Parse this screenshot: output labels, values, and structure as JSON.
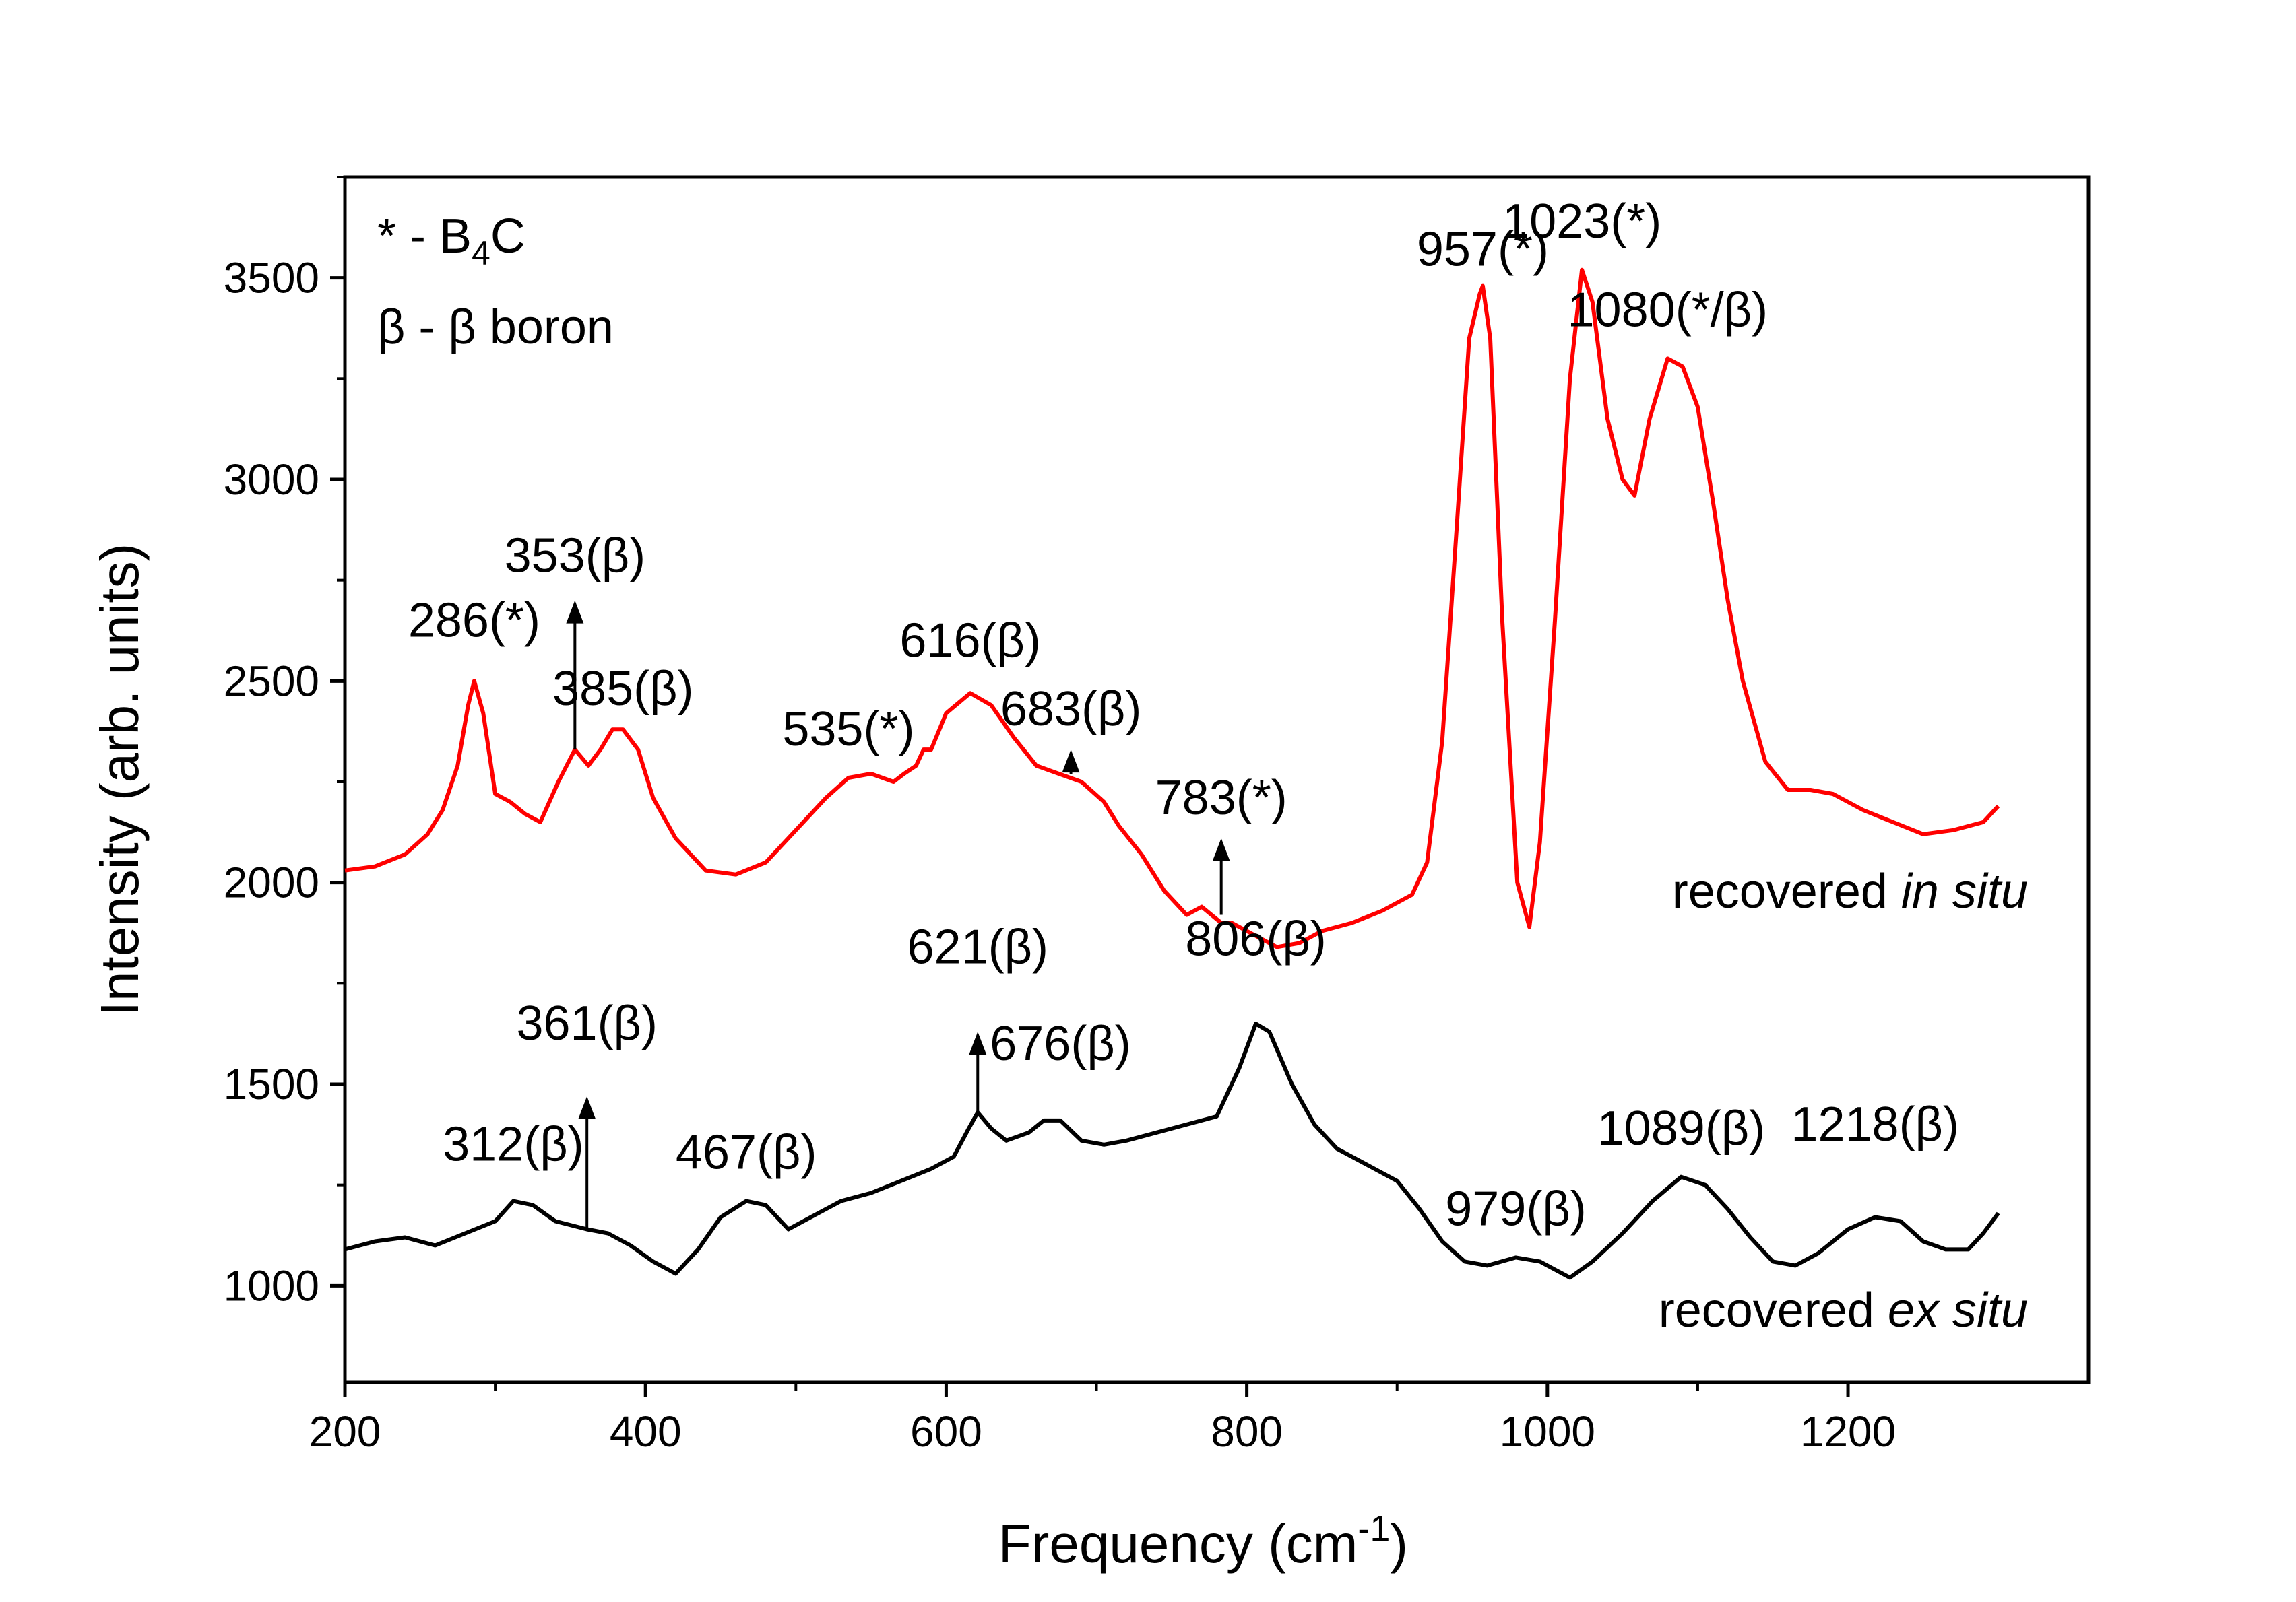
{
  "chart_data": {
    "type": "line",
    "title": "",
    "xlabel_main": "Frequency (cm",
    "xlabel_sup": "-1",
    "xlabel_end": ")",
    "ylabel": "Intensity (arb. units)",
    "xlim": [
      200,
      1360
    ],
    "ylim": [
      760,
      3750
    ],
    "x_ticks": [
      "200",
      "400",
      "600",
      "800",
      "1000",
      "1200"
    ],
    "y_ticks": [
      "1000",
      "1500",
      "2000",
      "2500",
      "3000",
      "3500"
    ],
    "legend": {
      "line1_prefix": "* - B",
      "line1_sub": "4",
      "line1_suffix": "C",
      "line2": "β - β boron"
    },
    "series": [
      {
        "name": "recovered in situ",
        "label_prefix": "recovered ",
        "label_italic": "in situ",
        "color": "#ff0000",
        "x": [
          200,
          220,
          240,
          255,
          265,
          275,
          282,
          286,
          292,
          300,
          310,
          320,
          330,
          342,
          353,
          362,
          370,
          378,
          385,
          395,
          405,
          420,
          440,
          460,
          480,
          500,
          520,
          535,
          550,
          565,
          572,
          580,
          585,
          590,
          600,
          616,
          630,
          645,
          660,
          675,
          690,
          705,
          715,
          730,
          745,
          760,
          770,
          783,
          790,
          805,
          820,
          835,
          850,
          870,
          890,
          910,
          920,
          930,
          940,
          948,
          955,
          957,
          962,
          970,
          980,
          988,
          995,
          1005,
          1015,
          1023,
          1030,
          1040,
          1050,
          1058,
          1068,
          1080,
          1090,
          1100,
          1110,
          1120,
          1130,
          1145,
          1160,
          1175,
          1190,
          1210,
          1230,
          1250,
          1270,
          1290,
          1300
        ],
        "values": [
          2030,
          2040,
          2070,
          2120,
          2180,
          2290,
          2440,
          2500,
          2420,
          2220,
          2200,
          2170,
          2150,
          2250,
          2330,
          2290,
          2330,
          2380,
          2380,
          2330,
          2210,
          2110,
          2030,
          2020,
          2050,
          2130,
          2210,
          2260,
          2270,
          2250,
          2270,
          2290,
          2330,
          2330,
          2420,
          2470,
          2440,
          2360,
          2290,
          2270,
          2250,
          2200,
          2140,
          2070,
          1980,
          1920,
          1940,
          1900,
          1900,
          1870,
          1840,
          1850,
          1880,
          1900,
          1930,
          1970,
          2050,
          2350,
          2900,
          3350,
          3460,
          3480,
          3350,
          2650,
          2000,
          1890,
          2100,
          2650,
          3250,
          3520,
          3440,
          3150,
          3000,
          2960,
          3150,
          3300,
          3280,
          3180,
          2950,
          2700,
          2500,
          2300,
          2230,
          2230,
          2220,
          2180,
          2150,
          2120,
          2130,
          2150,
          2190
        ]
      },
      {
        "name": "recovered ex situ",
        "label_prefix": "recovered ",
        "label_italic": "ex situ",
        "color": "#000000",
        "x": [
          200,
          220,
          240,
          260,
          280,
          300,
          312,
          325,
          340,
          361,
          375,
          390,
          405,
          420,
          435,
          450,
          467,
          480,
          495,
          510,
          530,
          550,
          570,
          590,
          605,
          615,
          621,
          630,
          640,
          655,
          665,
          676,
          690,
          705,
          720,
          740,
          760,
          780,
          795,
          806,
          815,
          830,
          845,
          860,
          880,
          900,
          915,
          930,
          945,
          960,
          979,
          995,
          1005,
          1015,
          1030,
          1050,
          1070,
          1089,
          1105,
          1120,
          1135,
          1150,
          1165,
          1180,
          1200,
          1218,
          1235,
          1250,
          1265,
          1280,
          1290,
          1300
        ],
        "values": [
          1090,
          1110,
          1120,
          1100,
          1130,
          1160,
          1210,
          1200,
          1160,
          1140,
          1130,
          1100,
          1060,
          1030,
          1090,
          1170,
          1210,
          1200,
          1140,
          1170,
          1210,
          1230,
          1260,
          1290,
          1320,
          1390,
          1430,
          1390,
          1360,
          1380,
          1410,
          1410,
          1360,
          1350,
          1360,
          1380,
          1400,
          1420,
          1540,
          1650,
          1630,
          1500,
          1400,
          1340,
          1300,
          1260,
          1190,
          1110,
          1060,
          1050,
          1070,
          1060,
          1040,
          1020,
          1060,
          1130,
          1210,
          1270,
          1250,
          1190,
          1120,
          1060,
          1050,
          1080,
          1140,
          1170,
          1160,
          1110,
          1090,
          1090,
          1130,
          1180
        ]
      }
    ],
    "annotations": [
      {
        "text": "286(*)",
        "x": 286,
        "y": 2610
      },
      {
        "text": "353(β)",
        "x": 353,
        "y": 2770
      },
      {
        "text": "385(β)",
        "x": 385,
        "y": 2440
      },
      {
        "text": "535(*)",
        "x": 535,
        "y": 2340
      },
      {
        "text": "616(β)",
        "x": 616,
        "y": 2560
      },
      {
        "text": "683(β)",
        "x": 683,
        "y": 2390
      },
      {
        "text": "783(*)",
        "x": 783,
        "y": 2170
      },
      {
        "text": "957(*)",
        "x": 957,
        "y": 3530
      },
      {
        "text": "1023(*)",
        "x": 1023,
        "y": 3600
      },
      {
        "text": "1080(*/β)",
        "x": 1080,
        "y": 3380
      },
      {
        "text": "312(β)",
        "x": 312,
        "y": 1310
      },
      {
        "text": "361(β)",
        "x": 361,
        "y": 1610
      },
      {
        "text": "467(β)",
        "x": 467,
        "y": 1290
      },
      {
        "text": "621(β)",
        "x": 621,
        "y": 1800
      },
      {
        "text": "676(β)",
        "x": 676,
        "y": 1560
      },
      {
        "text": "806(β)",
        "x": 806,
        "y": 1820
      },
      {
        "text": "979(β)",
        "x": 979,
        "y": 1150
      },
      {
        "text": "1089(β)",
        "x": 1089,
        "y": 1350
      },
      {
        "text": "1218(β)",
        "x": 1218,
        "y": 1360
      }
    ],
    "arrows": [
      {
        "name": "arrow-353",
        "x": 353,
        "from": 2330,
        "to": 2700
      },
      {
        "name": "arrow-683",
        "x": 683,
        "from": 2270,
        "to": 2330
      },
      {
        "name": "arrow-783",
        "x": 783,
        "from": 1920,
        "to": 2110
      },
      {
        "name": "arrow-361",
        "x": 361,
        "from": 1140,
        "to": 1470
      },
      {
        "name": "arrow-621",
        "x": 621,
        "from": 1430,
        "to": 1630
      }
    ]
  }
}
